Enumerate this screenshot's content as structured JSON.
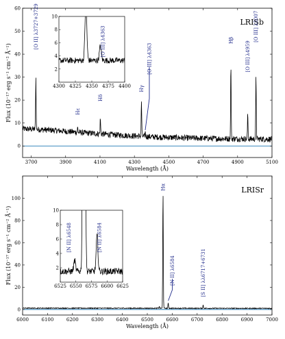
{
  "chart_data": [
    {
      "type": "line",
      "panel_label": "LRISb",
      "xlabel": "Wavelength (Å)",
      "ylabel": "Flux (10⁻¹⁷ erg s⁻¹ cm⁻² Å⁻¹)",
      "xlim": [
        3650,
        5100
      ],
      "ylim": [
        -5,
        60
      ],
      "xticks": [
        3700,
        3900,
        4100,
        4300,
        4500,
        4700,
        4900,
        5100
      ],
      "yticks": [
        0,
        10,
        20,
        30,
        40,
        50,
        60
      ],
      "zero_line_color": "#1f77b4",
      "line_color": "#000000",
      "annotation_color": "#1f2a8a",
      "continuum": [
        [
          3650,
          7.5
        ],
        [
          3800,
          7.0
        ],
        [
          4000,
          5.8
        ],
        [
          4200,
          4.8
        ],
        [
          4400,
          4.0
        ],
        [
          4600,
          3.5
        ],
        [
          4800,
          3.2
        ],
        [
          5100,
          3.0
        ]
      ],
      "emission_lines": [
        {
          "label": "[O II] λ3727+3729",
          "x": 3727,
          "peak": 30,
          "label_y": 52
        },
        {
          "label": "Hε",
          "x": 3970,
          "peak": 8,
          "label_y": 15
        },
        {
          "label": "Hδ",
          "x": 4102,
          "peak": 12,
          "label_y": 21
        },
        {
          "label": "Hγ",
          "x": 4341,
          "peak": 19.5,
          "label_y": 25
        },
        {
          "label": "[O III] λ4363",
          "x": 4363,
          "peak": 6,
          "label_y": 38,
          "marker": true
        },
        {
          "label": "Hβ",
          "x": 4861,
          "peak": 36,
          "label_y": 46
        },
        {
          "label": "[O III] λ4959",
          "x": 4959,
          "peak": 14,
          "label_y": 39
        },
        {
          "label": "[O III] λ5007",
          "x": 5007,
          "peak": 30,
          "label_y": 52
        }
      ],
      "inset": {
        "xlim": [
          4300,
          4400
        ],
        "ylim": [
          0,
          10
        ],
        "xticks": [
          4300,
          4325,
          4350,
          4375,
          4400
        ],
        "yticks": [
          2,
          4,
          6,
          8,
          10
        ],
        "continuum": 3.3,
        "lines": [
          {
            "label": "Hγ",
            "x": 4341,
            "peak": 12
          },
          {
            "label": "[O III] λ4363",
            "x": 4363,
            "peak": 5.5
          }
        ]
      }
    },
    {
      "type": "line",
      "panel_label": "LRISr",
      "xlabel": "Wavelength (Å)",
      "ylabel": "Flux (10⁻¹⁷ erg s⁻¹ cm⁻² Å⁻¹)",
      "xlim": [
        6000,
        7000
      ],
      "ylim": [
        -5,
        120
      ],
      "xticks": [
        6000,
        6100,
        6200,
        6300,
        6400,
        6500,
        6600,
        6700,
        6800,
        6900,
        7000
      ],
      "yticks": [
        0,
        20,
        40,
        60,
        80,
        100
      ],
      "zero_line_color": "#1f77b4",
      "line_color": "#000000",
      "annotation_color": "#1f2a8a",
      "continuum": [
        [
          6000,
          1.2
        ],
        [
          7000,
          1.0
        ]
      ],
      "emission_lines": [
        {
          "label": "[N II] λ6548",
          "x": 6548,
          "peak": 2.8
        },
        {
          "label": "Hα",
          "x": 6563,
          "peak": 107,
          "label_y": 110
        },
        {
          "label": "[N II] λ6584",
          "x": 6584,
          "peak": 6,
          "label_y": 35,
          "marker": true
        },
        {
          "label": "[S II] λλ6717+6731",
          "x": 6724,
          "peak": 4,
          "label_y": 33
        }
      ],
      "inset": {
        "xlim": [
          6525,
          6625
        ],
        "ylim": [
          0,
          10
        ],
        "xticks": [
          6525,
          6550,
          6575,
          6600,
          6625
        ],
        "yticks": [
          2,
          4,
          6,
          8,
          10
        ],
        "continuum": 1.5,
        "lines": [
          {
            "label": "[N II] λ6548",
            "x": 6548,
            "peak": 3.0
          },
          {
            "label": "Hα",
            "x": 6563,
            "peak": 120
          },
          {
            "label": "[N II] λ6584",
            "x": 6584,
            "peak": 6.5
          }
        ]
      }
    }
  ]
}
